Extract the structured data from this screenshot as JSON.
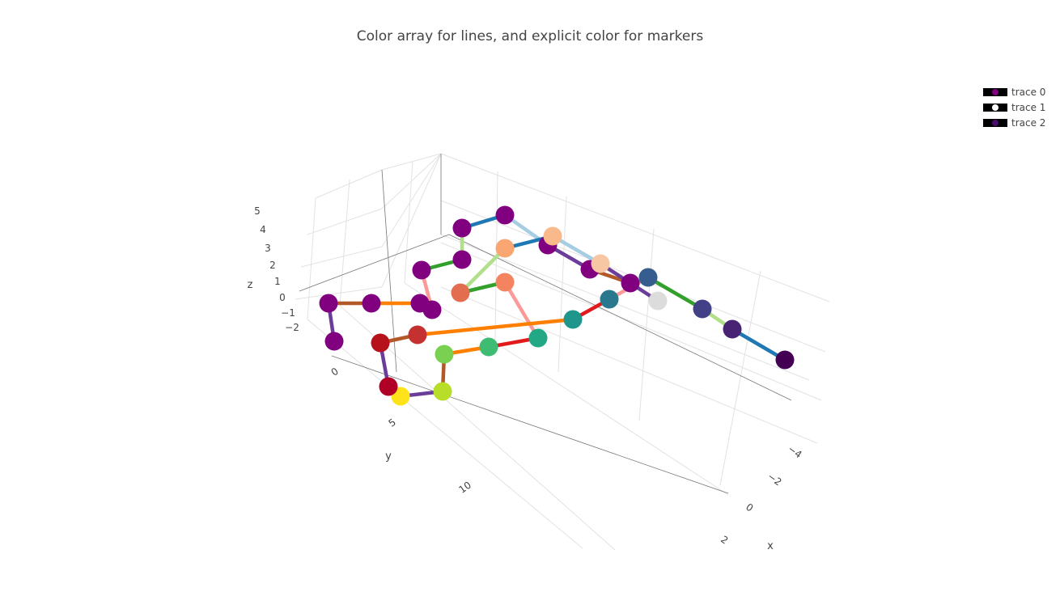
{
  "chart_data": {
    "type": "scatter3d",
    "title": "Color array for lines, and explicit color for markers",
    "axes": {
      "x": {
        "label": "x",
        "ticks": [
          "−4",
          "−2",
          "0",
          "2"
        ]
      },
      "y": {
        "label": "y",
        "ticks": [
          "0",
          "5",
          "10"
        ]
      },
      "z": {
        "label": "z",
        "ticks": [
          "5",
          "4",
          "3",
          "2",
          "1",
          "0",
          "−1",
          "−2"
        ]
      }
    },
    "grid": true,
    "legend": {
      "placement": "top-right",
      "items": [
        {
          "name": "trace 0",
          "marker_color": "#800080"
        },
        {
          "name": "trace 1",
          "marker_color": "#ffffff"
        },
        {
          "name": "trace 2",
          "marker_color": "#4b0c6b"
        }
      ]
    },
    "series": [
      {
        "name": "trace 0",
        "marker_color": "#800080",
        "line_colors": [
          "#6a3d9a",
          "#b15928",
          "#ff7f00",
          "#e31a1c",
          "#fb9a99",
          "#33a02c",
          "#b2df8a",
          "#1f78b4",
          "#a6cee3",
          "#6a3d9a",
          "#b15928"
        ]
      },
      {
        "name": "trace 1",
        "marker_colors": [
          "#ffff33",
          "#ff7f00",
          "#e31a1c",
          "#fb9a99",
          "#33a02c",
          "#b2df8a",
          "#1f78b4",
          "#a6cee3",
          "#d9d9d9",
          "#b15928"
        ],
        "line_colors": [
          "#6a3d9a",
          "#b15928",
          "#ff7f00",
          "#e31a1c",
          "#fb9a99",
          "#33a02c",
          "#b2df8a",
          "#1f78b4",
          "#a6cee3"
        ]
      },
      {
        "name": "trace 2",
        "marker_colors": [
          "#ffff33",
          "#b2df8a",
          "#33a02c",
          "#1f78b4",
          "#a6cee3",
          "#d9d9d9",
          "#440154"
        ],
        "line_colors": [
          "#6a3d9a",
          "#b15928",
          "#ff7f00",
          "#e31a1c",
          "#fb9a99",
          "#33a02c",
          "#b2df8a",
          "#1f78b4",
          "#a6cee3"
        ]
      }
    ]
  }
}
